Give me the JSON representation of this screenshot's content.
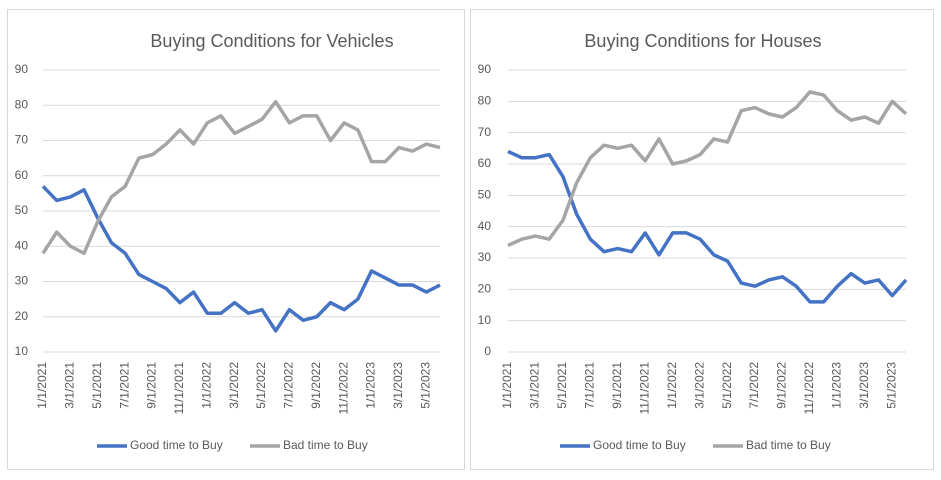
{
  "chart_data": [
    {
      "type": "line",
      "title": "Buying Conditions for Vehicles",
      "categories": [
        "1/1/2021",
        null,
        "3/1/2021",
        null,
        "5/1/2021",
        null,
        "7/1/2021",
        null,
        "9/1/2021",
        null,
        "11/1/2021",
        null,
        "1/1/2022",
        null,
        "3/1/2022",
        null,
        "5/1/2022",
        null,
        "7/1/2022",
        null,
        "9/1/2022",
        null,
        "11/1/2022",
        null,
        "1/1/2023",
        null,
        "3/1/2023",
        null,
        "5/1/2023",
        null
      ],
      "series": [
        {
          "name": "Good time to Buy",
          "color": "#4472c4",
          "values": [
            57,
            53,
            54,
            56,
            48,
            41,
            38,
            32,
            30,
            28,
            24,
            27,
            21,
            21,
            24,
            21,
            22,
            16,
            22,
            19,
            20,
            24,
            22,
            25,
            33,
            31,
            29,
            29,
            27,
            29
          ]
        },
        {
          "name": "Bad time to Buy",
          "color": "#a5a5a5",
          "values": [
            38,
            44,
            40,
            38,
            47,
            54,
            57,
            65,
            66,
            69,
            73,
            69,
            75,
            77,
            72,
            74,
            76,
            81,
            75,
            77,
            77,
            70,
            75,
            73,
            64,
            64,
            68,
            67,
            69,
            68
          ]
        }
      ],
      "ylim": [
        10,
        90
      ],
      "yticks": [
        10,
        20,
        30,
        40,
        50,
        60,
        70,
        80,
        90
      ],
      "grid": true,
      "legend": "bottom"
    },
    {
      "type": "line",
      "title": "Buying Conditions for Houses",
      "categories": [
        "1/1/2021",
        null,
        "3/1/2021",
        null,
        "5/1/2021",
        null,
        "7/1/2021",
        null,
        "9/1/2021",
        null,
        "11/1/2021",
        null,
        "1/1/2022",
        null,
        "3/1/2022",
        null,
        "5/1/2022",
        null,
        "7/1/2022",
        null,
        "9/1/2022",
        null,
        "11/1/2022",
        null,
        "1/1/2023",
        null,
        "3/1/2023",
        null,
        "5/1/2023",
        null
      ],
      "series": [
        {
          "name": "Good time to Buy",
          "color": "#4472c4",
          "values": [
            64,
            62,
            62,
            63,
            56,
            44,
            36,
            32,
            33,
            32,
            38,
            31,
            38,
            38,
            36,
            31,
            29,
            22,
            21,
            23,
            24,
            21,
            16,
            16,
            21,
            25,
            22,
            23,
            18,
            23
          ]
        },
        {
          "name": "Bad time to Buy",
          "color": "#a5a5a5",
          "values": [
            34,
            36,
            37,
            36,
            42,
            54,
            62,
            66,
            65,
            66,
            61,
            68,
            60,
            61,
            63,
            68,
            67,
            77,
            78,
            76,
            75,
            78,
            83,
            82,
            77,
            74,
            75,
            73,
            80,
            76
          ]
        }
      ],
      "ylim": [
        0,
        90
      ],
      "yticks": [
        0,
        10,
        20,
        30,
        40,
        50,
        60,
        70,
        80,
        90
      ],
      "grid": true,
      "legend": "bottom"
    }
  ]
}
